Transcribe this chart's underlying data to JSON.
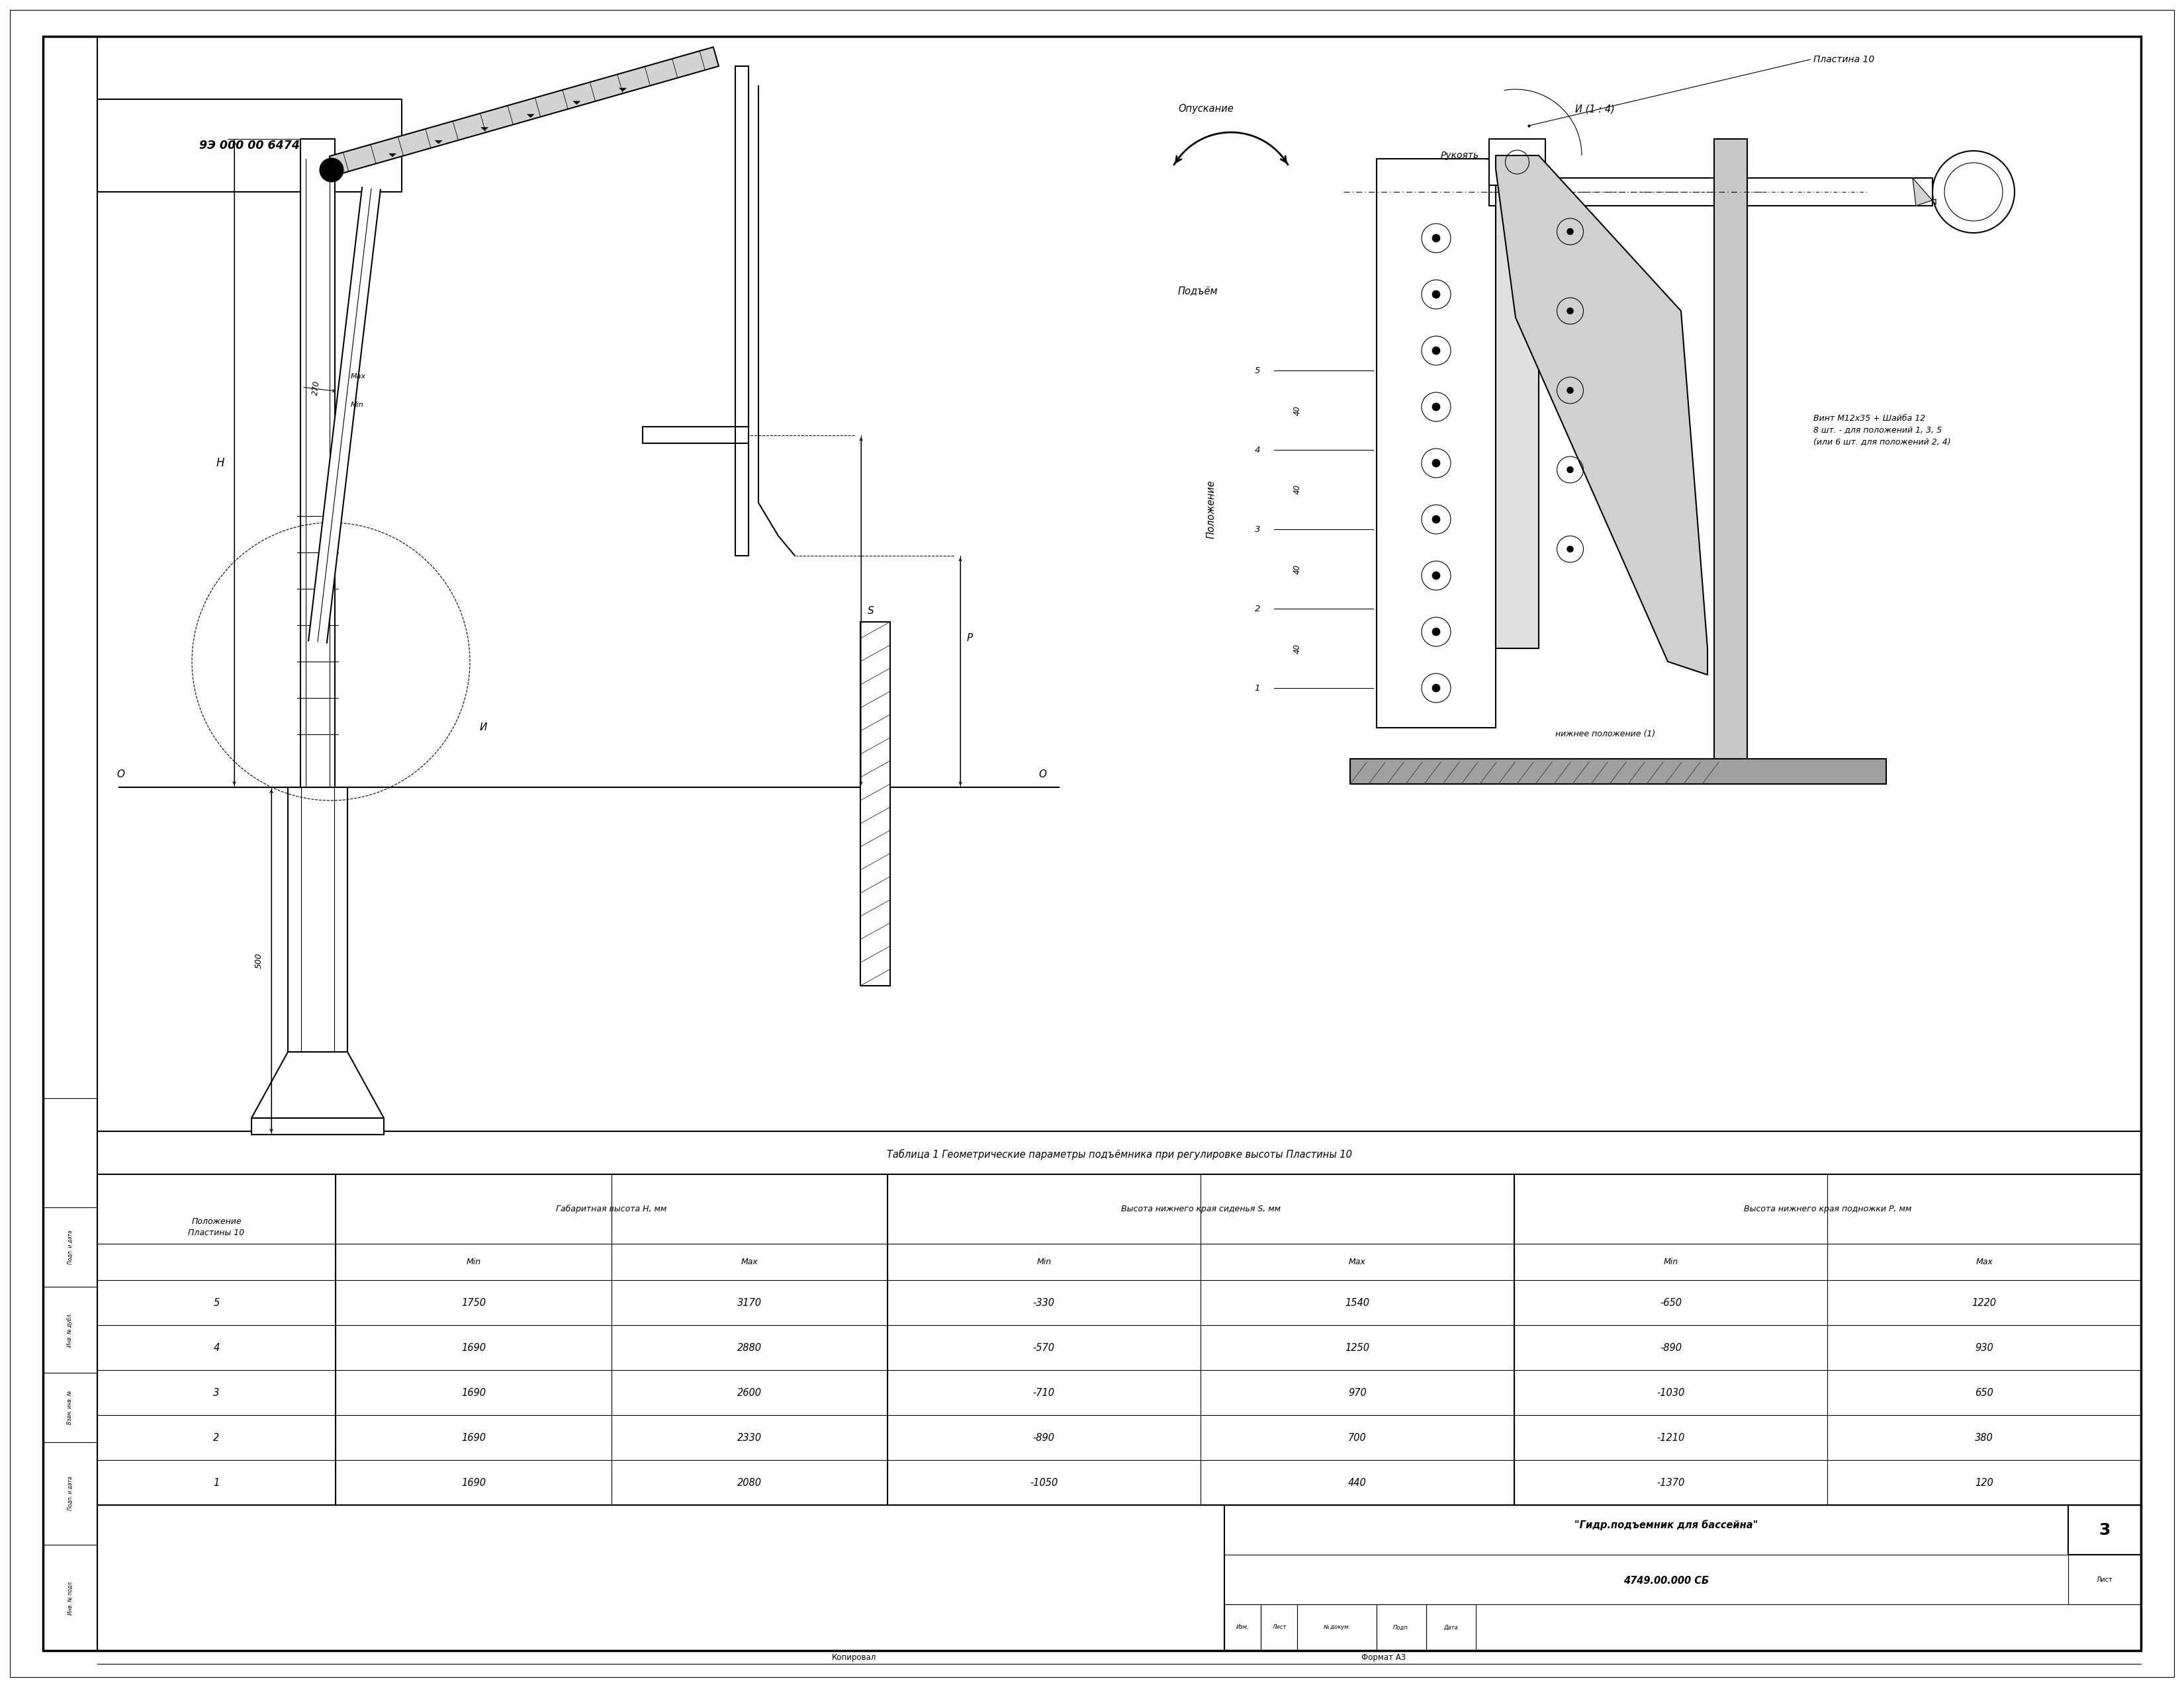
{
  "title": "Гидр.подъемник для бассейна",
  "doc_number": "4749.00.000 СБ",
  "sheet": "3",
  "format": "Формат А3",
  "copied": "Копировал",
  "stamp_code": "9Э 000 00 6474",
  "scale_label": "И (1 : 4)",
  "table_title": "Таблица 1 Геометрические параметры подъёмника при регулировке высоты Пластины 10",
  "col_headers": [
    "Положение\nПластины 10",
    "Габаритная высота Н, мм",
    "Высота нижнего края сиденья S, мм",
    "Высота нижнего края подножки Р, мм"
  ],
  "sub_headers": [
    "Min",
    "Max",
    "Min",
    "Max",
    "Min",
    "Max"
  ],
  "table_data": [
    [
      1,
      1690,
      2080,
      -1050,
      440,
      -1370,
      120
    ],
    [
      2,
      1690,
      2330,
      -890,
      700,
      -1210,
      380
    ],
    [
      3,
      1690,
      2600,
      -710,
      970,
      -1030,
      650
    ],
    [
      4,
      1690,
      2880,
      -570,
      1250,
      -890,
      930
    ],
    [
      5,
      1750,
      3170,
      -330,
      1540,
      -650,
      1220
    ]
  ],
  "bg_color": "#ffffff",
  "line_color": "#000000"
}
